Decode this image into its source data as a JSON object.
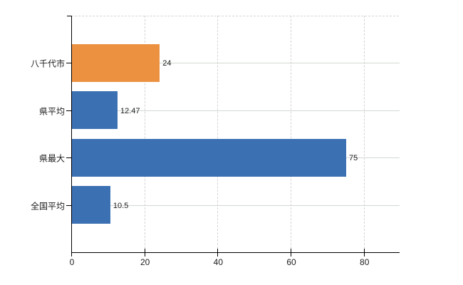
{
  "window": {
    "background_color": "#ffffff"
  },
  "chart_data": {
    "type": "bar",
    "orientation": "horizontal",
    "title": "",
    "xlabel": "",
    "ylabel": "",
    "categories": [
      "八千代市",
      "県平均",
      "県最大",
      "全国平均"
    ],
    "values": [
      24,
      12.47,
      75,
      10.5
    ],
    "value_labels": [
      "24",
      "12.47",
      "75",
      "10.5"
    ],
    "bar_colors": [
      "#ec9140",
      "#3b70b2",
      "#3b70b2",
      "#3b70b2"
    ],
    "highlight_color": "#ec9140",
    "base_color": "#3b70b2",
    "x_ticks": [
      0,
      20,
      40,
      60,
      80
    ],
    "x_tick_labels": [
      "0",
      "20",
      "40",
      "60",
      "80"
    ],
    "xlim": [
      0,
      89.6
    ],
    "legend": "none",
    "grid": {
      "vertical_style": "dashed",
      "horizontal_style": "solid",
      "vertical_color": "#d7d2d6",
      "horizontal_color": "#d2d9d2",
      "top_border_style": "dashed"
    },
    "axis_color": "#000000",
    "text_color": "#1c1c1c"
  }
}
